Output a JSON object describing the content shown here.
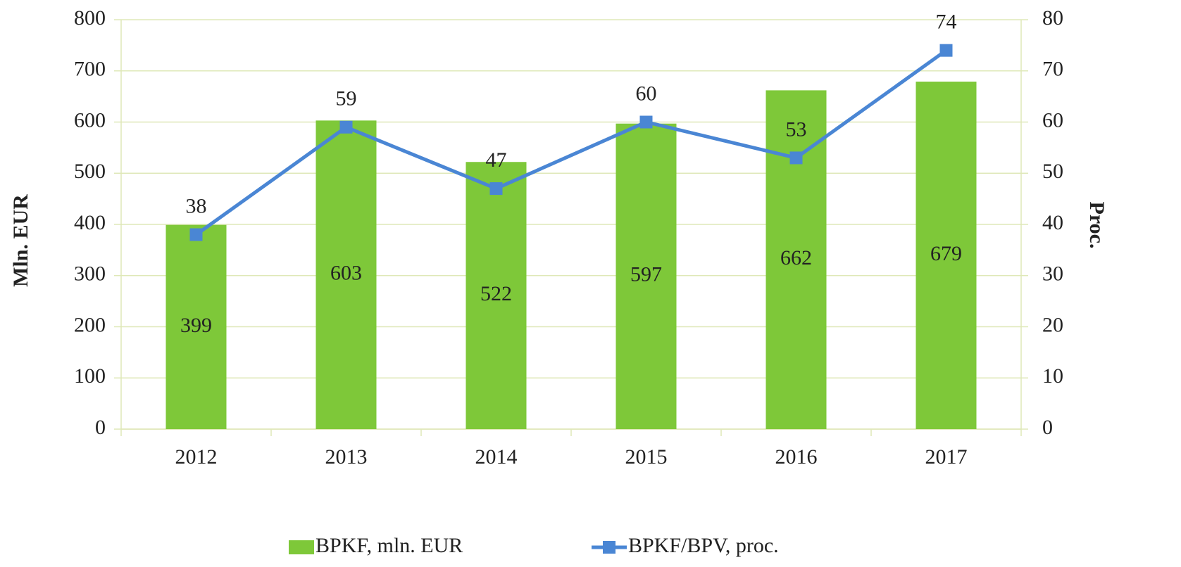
{
  "chart_data": {
    "type": "bar",
    "categories": [
      "2012",
      "2013",
      "2014",
      "2015",
      "2016",
      "2017"
    ],
    "series": [
      {
        "name": "BPKF, mln. EUR",
        "type": "bar",
        "color": "#7ec839",
        "values": [
          399,
          603,
          522,
          597,
          662,
          679
        ]
      },
      {
        "name": "BPKF/BPV, proc.",
        "type": "line",
        "axis": "y2",
        "color": "#4a86d4",
        "values": [
          38,
          59,
          47,
          60,
          53,
          74
        ]
      }
    ],
    "y_label": "Mln. EUR",
    "y2_label": "Proc.",
    "ylim": [
      0,
      800
    ],
    "yticks": [
      0,
      100,
      200,
      300,
      400,
      500,
      600,
      700,
      800
    ],
    "y2lim": [
      0,
      80
    ],
    "y2ticks": [
      0,
      10,
      20,
      30,
      40,
      50,
      60,
      70,
      80
    ],
    "grid": true,
    "legend": "bottom"
  }
}
